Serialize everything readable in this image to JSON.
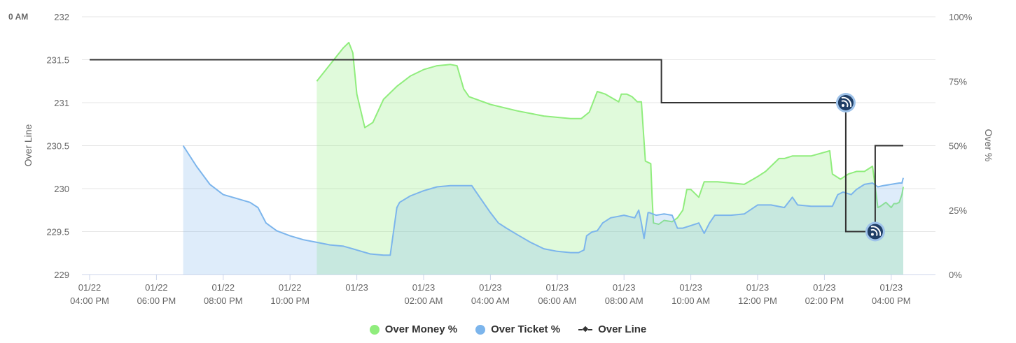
{
  "corner_label": "0 AM",
  "chart_data": {
    "type": "area",
    "y_left": {
      "label": "Over Line",
      "ticks": [
        "232",
        "231.5",
        "231",
        "230.5",
        "230",
        "229.5",
        "229"
      ],
      "lim": [
        229,
        232
      ]
    },
    "y_right": {
      "label": "Over %",
      "ticks": [
        "100%",
        "75%",
        "50%",
        "25%",
        "0%"
      ],
      "lim": [
        0,
        100
      ]
    },
    "x_ticks": [
      {
        "date": "01/22",
        "time": "04:00 PM"
      },
      {
        "date": "01/22",
        "time": "06:00 PM"
      },
      {
        "date": "01/22",
        "time": "08:00 PM"
      },
      {
        "date": "01/22",
        "time": "10:00 PM"
      },
      {
        "date": "01/23",
        "time": ""
      },
      {
        "date": "01/23",
        "time": "02:00 AM"
      },
      {
        "date": "01/23",
        "time": "04:00 AM"
      },
      {
        "date": "01/23",
        "time": "06:00 AM"
      },
      {
        "date": "01/23",
        "time": "08:00 AM"
      },
      {
        "date": "01/23",
        "time": "10:00 AM"
      },
      {
        "date": "01/23",
        "time": "12:00 PM"
      },
      {
        "date": "01/23",
        "time": "02:00 PM"
      },
      {
        "date": "01/23",
        "time": "04:00 PM"
      }
    ],
    "x_unit": "hours since 01/22 04:00 PM",
    "series": [
      {
        "name": "Over Money %",
        "color": "#90ed7d",
        "fill": "rgba(144,237,125,0.28)",
        "axis": "right",
        "points": [
          [
            8.5,
            75
          ],
          [
            9.5,
            88
          ],
          [
            9.7,
            90
          ],
          [
            9.85,
            86
          ],
          [
            10.0,
            70
          ],
          [
            10.3,
            57
          ],
          [
            10.6,
            59
          ],
          [
            11.0,
            68
          ],
          [
            11.5,
            73
          ],
          [
            12.0,
            77
          ],
          [
            12.5,
            79.5
          ],
          [
            13.0,
            81
          ],
          [
            13.5,
            81.5
          ],
          [
            13.75,
            81
          ],
          [
            14.0,
            72
          ],
          [
            14.2,
            69
          ],
          [
            15.0,
            66
          ],
          [
            16.0,
            63.5
          ],
          [
            17.0,
            61.5
          ],
          [
            18.0,
            60.5
          ],
          [
            18.4,
            60.5
          ],
          [
            18.7,
            63
          ],
          [
            19.0,
            71
          ],
          [
            19.3,
            70
          ],
          [
            19.8,
            67
          ],
          [
            19.9,
            70
          ],
          [
            20.1,
            70
          ],
          [
            20.3,
            69
          ],
          [
            20.5,
            67
          ],
          [
            20.65,
            67
          ],
          [
            20.8,
            44
          ],
          [
            21.0,
            43
          ],
          [
            21.05,
            30
          ],
          [
            21.1,
            20
          ],
          [
            21.3,
            19.5
          ],
          [
            21.5,
            21
          ],
          [
            21.8,
            20.5
          ],
          [
            22.0,
            22
          ],
          [
            22.2,
            25
          ],
          [
            22.35,
            33
          ],
          [
            22.5,
            33
          ],
          [
            22.8,
            30
          ],
          [
            23.0,
            36
          ],
          [
            23.5,
            36
          ],
          [
            24.0,
            35.5
          ],
          [
            24.5,
            35
          ],
          [
            25.0,
            38
          ],
          [
            25.3,
            40
          ],
          [
            25.8,
            45
          ],
          [
            26.0,
            45
          ],
          [
            26.3,
            46
          ],
          [
            27.0,
            46
          ],
          [
            27.7,
            48
          ],
          [
            27.8,
            39
          ],
          [
            28.1,
            37
          ],
          [
            28.4,
            39
          ],
          [
            28.7,
            40
          ],
          [
            29.0,
            40
          ],
          [
            29.3,
            42
          ],
          [
            29.5,
            26
          ],
          [
            29.6,
            26.5
          ],
          [
            29.8,
            28
          ],
          [
            30.0,
            26
          ],
          [
            30.1,
            27.5
          ],
          [
            30.2,
            27.5
          ],
          [
            30.3,
            28
          ],
          [
            30.4,
            31
          ],
          [
            30.45,
            34
          ]
        ]
      },
      {
        "name": "Over Ticket %",
        "color": "#7cb5ec",
        "fill": "rgba(124,181,236,0.25)",
        "axis": "right",
        "points": [
          [
            3.5,
            50
          ],
          [
            4.0,
            42
          ],
          [
            4.5,
            35
          ],
          [
            5.0,
            31
          ],
          [
            5.5,
            29.5
          ],
          [
            6.0,
            28
          ],
          [
            6.3,
            26
          ],
          [
            6.6,
            20
          ],
          [
            7.0,
            17
          ],
          [
            7.5,
            15
          ],
          [
            8.0,
            13.5
          ],
          [
            8.5,
            12.5
          ],
          [
            9.0,
            11.5
          ],
          [
            9.5,
            11
          ],
          [
            10.0,
            9.5
          ],
          [
            10.5,
            8
          ],
          [
            11.0,
            7.5
          ],
          [
            11.25,
            7.5
          ],
          [
            11.5,
            26
          ],
          [
            11.6,
            28
          ],
          [
            12.0,
            30.5
          ],
          [
            12.5,
            32.5
          ],
          [
            13.0,
            34
          ],
          [
            13.5,
            34.5
          ],
          [
            14.0,
            34.5
          ],
          [
            14.3,
            34.5
          ],
          [
            14.6,
            30
          ],
          [
            15.0,
            24
          ],
          [
            15.3,
            20
          ],
          [
            15.6,
            18
          ],
          [
            16.0,
            15.5
          ],
          [
            16.5,
            12.5
          ],
          [
            17.0,
            10
          ],
          [
            17.5,
            9
          ],
          [
            18.0,
            8.5
          ],
          [
            18.3,
            8.5
          ],
          [
            18.5,
            9.5
          ],
          [
            18.6,
            15
          ],
          [
            18.8,
            16.5
          ],
          [
            19.0,
            17
          ],
          [
            19.2,
            20
          ],
          [
            19.5,
            22
          ],
          [
            20.0,
            23
          ],
          [
            20.4,
            22
          ],
          [
            20.55,
            25
          ],
          [
            20.65,
            20
          ],
          [
            20.75,
            14
          ],
          [
            20.9,
            24
          ],
          [
            20.95,
            24
          ],
          [
            21.2,
            23
          ],
          [
            21.5,
            23.5
          ],
          [
            21.8,
            23
          ],
          [
            22.0,
            18
          ],
          [
            22.2,
            18
          ],
          [
            22.5,
            19
          ],
          [
            22.8,
            20
          ],
          [
            23.0,
            16
          ],
          [
            23.2,
            20
          ],
          [
            23.4,
            23
          ],
          [
            24.0,
            23
          ],
          [
            24.5,
            23.5
          ],
          [
            25.0,
            27
          ],
          [
            25.5,
            27
          ],
          [
            26.0,
            26
          ],
          [
            26.3,
            30
          ],
          [
            26.5,
            27
          ],
          [
            27.0,
            26.5
          ],
          [
            27.5,
            26.5
          ],
          [
            27.8,
            26.5
          ],
          [
            28.0,
            31
          ],
          [
            28.2,
            32
          ],
          [
            28.5,
            31
          ],
          [
            28.7,
            33
          ],
          [
            29.0,
            35
          ],
          [
            29.3,
            35.5
          ],
          [
            29.5,
            34
          ],
          [
            29.7,
            34.5
          ],
          [
            30.0,
            35
          ],
          [
            30.3,
            35.5
          ],
          [
            30.4,
            35.5
          ],
          [
            30.45,
            37.5
          ]
        ]
      },
      {
        "name": "Over Line",
        "color": "#333333",
        "axis": "left",
        "step": true,
        "points": [
          [
            0.0,
            231.5
          ],
          [
            21.4,
            231.5
          ],
          [
            21.4,
            231.0
          ],
          [
            28.3,
            231.0
          ],
          [
            28.3,
            229.5
          ],
          [
            29.4,
            229.5
          ],
          [
            29.4,
            230.5
          ],
          [
            30.45,
            230.5
          ]
        ]
      }
    ],
    "flags": [
      {
        "x": 28.3,
        "y": 231.0
      },
      {
        "x": 29.4,
        "y": 229.5
      }
    ],
    "x_lim": [
      -0.1,
      30.6
    ],
    "grid": true,
    "legend_position": "bottom-center"
  },
  "legend": [
    {
      "label": "Over Money %",
      "color": "#90ed7d",
      "symbol": "circle"
    },
    {
      "label": "Over Ticket %",
      "color": "#7cb5ec",
      "symbol": "circle"
    },
    {
      "label": "Over Line",
      "color": "#333333",
      "symbol": "line"
    }
  ]
}
